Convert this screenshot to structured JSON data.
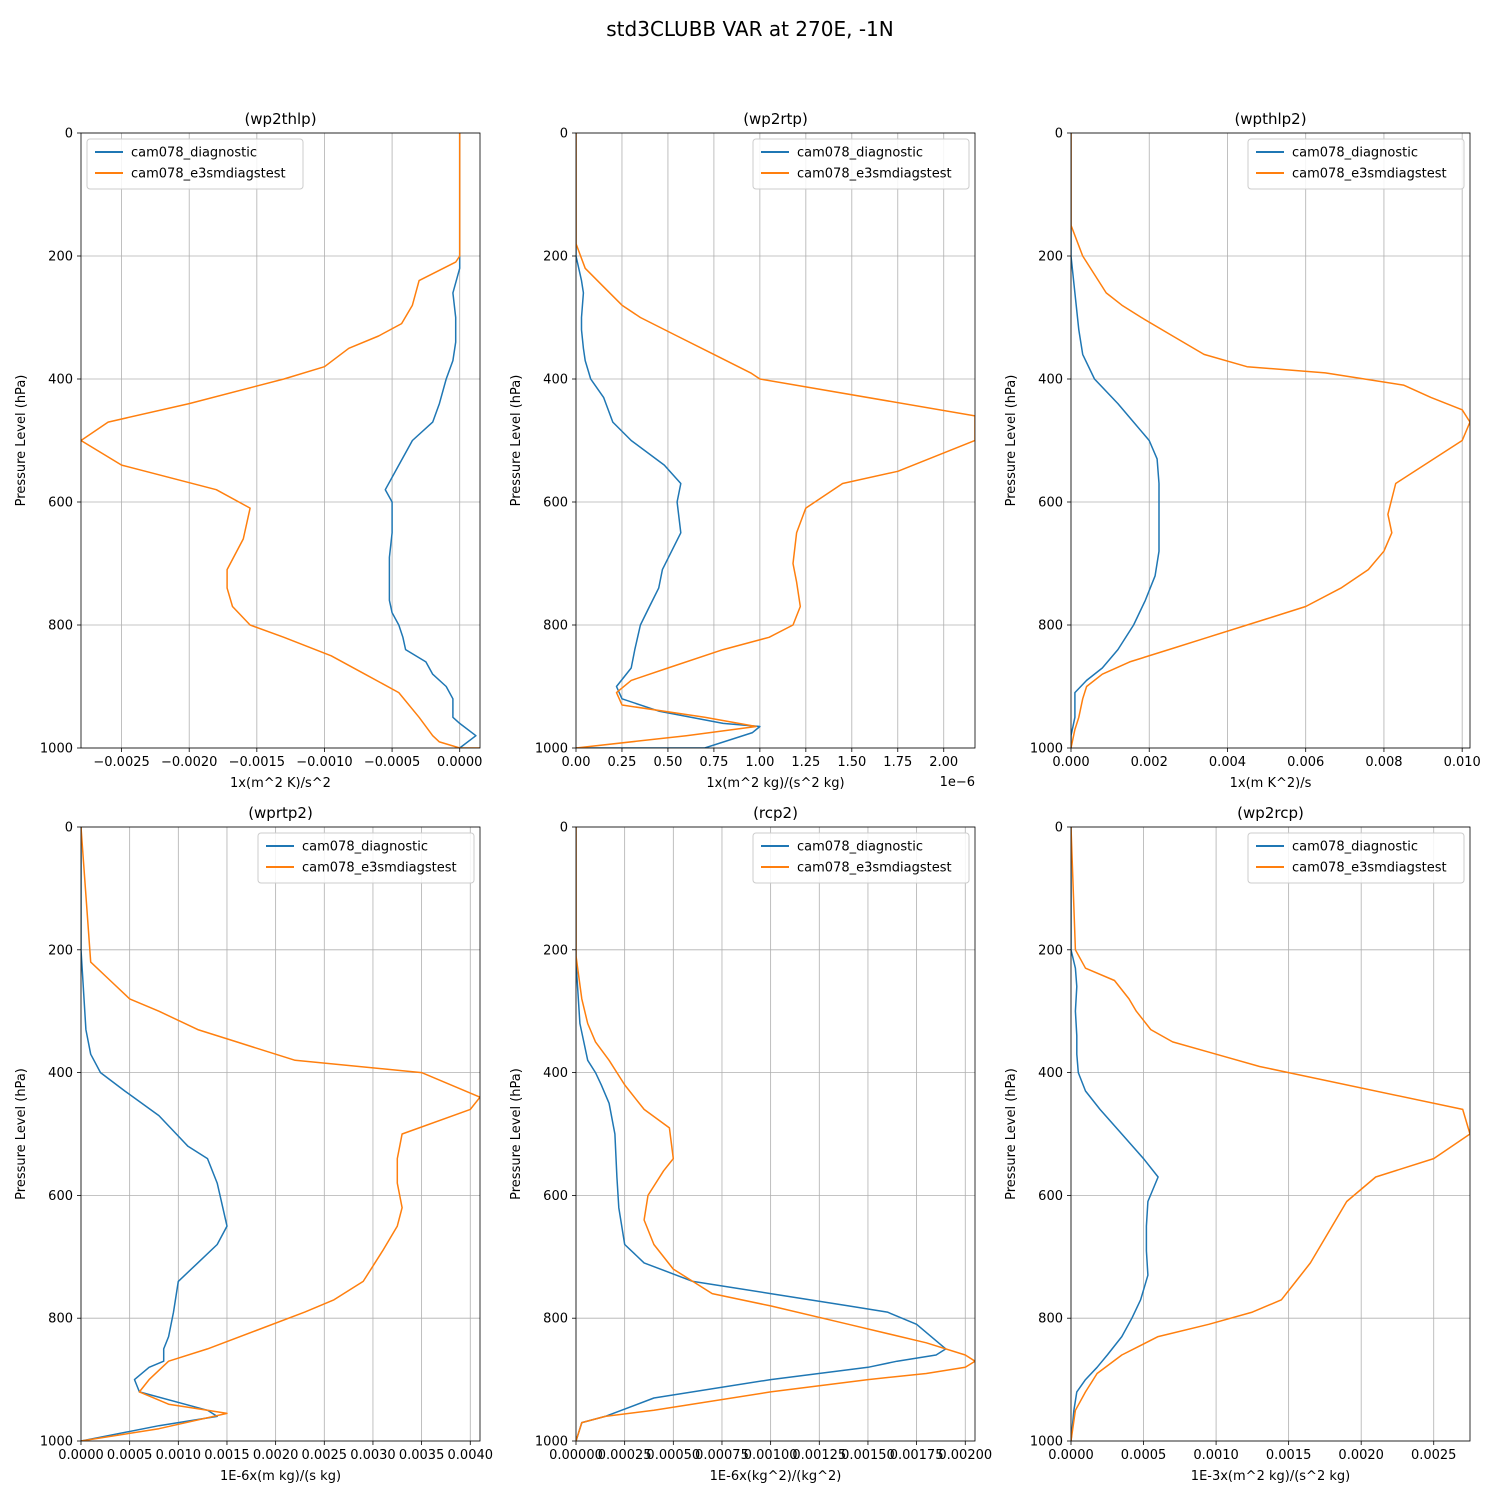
{
  "figure": {
    "title": "std3CLUBB VAR at 270E, -1N"
  },
  "legend_labels": [
    "cam078_diagnostic",
    "cam078_e3smdiagstest"
  ],
  "colors": {
    "series1": "#1f77b4",
    "series2": "#ff7f0e",
    "grid": "#b0b0b0"
  },
  "chart_data": [
    {
      "type": "line",
      "title": "(wp2thlp)",
      "xlabel": "1x(m^2 K)/s^2",
      "ylabel": "Pressure Level (hPa)",
      "xlim": [
        -0.0028,
        0.00015
      ],
      "ylim": [
        1000,
        0
      ],
      "xticks": [
        -0.0025,
        -0.002,
        -0.0015,
        -0.001,
        -0.0005,
        0.0
      ],
      "xtick_labels": [
        "−0.0025",
        "−0.0020",
        "−0.0015",
        "−0.0010",
        "−0.0005",
        "0.0000"
      ],
      "yticks": [
        0,
        200,
        400,
        600,
        800,
        1000
      ],
      "offset_text": "",
      "legend_loc": "upper left",
      "grid": true,
      "series": [
        {
          "name": "cam078_diagnostic",
          "x": [
            0,
            0,
            0,
            0,
            -5e-05,
            -3e-05,
            -3e-05,
            -5e-05,
            -0.0001,
            -0.00015,
            -0.0002,
            -0.00035,
            -0.00045,
            -0.00055,
            -0.0005,
            -0.0005,
            -0.00052,
            -0.00052,
            -0.00052,
            -0.0005,
            -0.00045,
            -0.00042,
            -0.0004,
            -0.00025,
            -0.0002,
            -0.0001,
            -5e-05,
            -5e-05,
            0.0,
            0.00012,
            0.0
          ],
          "y": [
            0,
            100,
            200,
            220,
            260,
            300,
            340,
            370,
            400,
            440,
            470,
            500,
            540,
            580,
            600,
            650,
            690,
            720,
            760,
            780,
            800,
            820,
            840,
            860,
            880,
            900,
            920,
            950,
            960,
            980,
            1000
          ]
        },
        {
          "name": "cam078_e3smdiagstest",
          "x": [
            0,
            0,
            0,
            -3e-05,
            -0.0003,
            -0.00035,
            -0.00043,
            -0.0006,
            -0.00082,
            -0.001,
            -0.0013,
            -0.002,
            -0.0026,
            -0.0028,
            -0.0025,
            -0.0018,
            -0.00155,
            -0.0016,
            -0.00172,
            -0.00172,
            -0.00168,
            -0.00155,
            -0.0013,
            -0.00095,
            -0.0007,
            -0.00045,
            -0.0003,
            -0.0002,
            -0.00015,
            0.0,
            0.00015,
            0.0
          ],
          "y": [
            0,
            100,
            200,
            210,
            240,
            280,
            310,
            330,
            350,
            380,
            400,
            440,
            470,
            500,
            540,
            580,
            610,
            660,
            710,
            740,
            770,
            800,
            820,
            850,
            880,
            910,
            950,
            980,
            990,
            1000,
            1000,
            1000
          ]
        }
      ]
    },
    {
      "type": "line",
      "title": "(wp2rtp)",
      "xlabel": "1x(m^2 kg)/(s^2 kg)",
      "ylabel": "Pressure Level (hPa)",
      "xlim": [
        0,
        2.17
      ],
      "ylim": [
        1000,
        0
      ],
      "xticks": [
        0,
        0.25,
        0.5,
        0.75,
        1.0,
        1.25,
        1.5,
        1.75,
        2.0
      ],
      "xtick_labels": [
        "0.00",
        "0.25",
        "0.50",
        "0.75",
        "1.00",
        "1.25",
        "1.50",
        "1.75",
        "2.00"
      ],
      "yticks": [
        0,
        200,
        400,
        600,
        800,
        1000
      ],
      "offset_text": "1e−6",
      "legend_loc": "upper right",
      "grid": true,
      "series": [
        {
          "name": "cam078_diagnostic",
          "x": [
            0,
            0,
            0,
            0.03,
            0.04,
            0.03,
            0.03,
            0.04,
            0.05,
            0.08,
            0.15,
            0.2,
            0.3,
            0.48,
            0.57,
            0.55,
            0.57,
            0.52,
            0.47,
            0.45,
            0.4,
            0.35,
            0.32,
            0.3,
            0.22,
            0.25,
            0.45,
            0.8,
            1.0,
            0.96,
            0.7,
            0.0
          ],
          "y": [
            0,
            100,
            200,
            240,
            260,
            300,
            320,
            350,
            370,
            400,
            430,
            470,
            500,
            540,
            570,
            600,
            650,
            680,
            710,
            740,
            770,
            800,
            840,
            870,
            900,
            920,
            940,
            960,
            965,
            975,
            1000,
            1000
          ]
        },
        {
          "name": "cam078_e3smdiagstest",
          "x": [
            0,
            0,
            0,
            0.05,
            0.15,
            0.25,
            0.35,
            0.55,
            0.75,
            0.95,
            1.0,
            2.17,
            2.17,
            1.75,
            1.45,
            1.25,
            1.2,
            1.18,
            1.2,
            1.22,
            1.18,
            1.05,
            0.8,
            0.5,
            0.3,
            0.22,
            0.25,
            0.7,
            0.98,
            0.6,
            0.0
          ],
          "y": [
            0,
            100,
            180,
            220,
            250,
            280,
            300,
            330,
            360,
            390,
            400,
            460,
            500,
            550,
            570,
            610,
            650,
            700,
            730,
            770,
            800,
            820,
            840,
            870,
            890,
            910,
            930,
            950,
            965,
            980,
            1000
          ]
        }
      ]
    },
    {
      "type": "line",
      "title": "(wpthlp2)",
      "xlabel": "1x(m K^2)/s",
      "ylabel": "Pressure Level (hPa)",
      "xlim": [
        0,
        0.0102
      ],
      "ylim": [
        1000,
        0
      ],
      "xticks": [
        0,
        0.002,
        0.004,
        0.006,
        0.008,
        0.01
      ],
      "xtick_labels": [
        "0.000",
        "0.002",
        "0.004",
        "0.006",
        "0.008",
        "0.010"
      ],
      "yticks": [
        0,
        200,
        400,
        600,
        800,
        1000
      ],
      "offset_text": "",
      "legend_loc": "upper right",
      "grid": true,
      "series": [
        {
          "name": "cam078_diagnostic",
          "x": [
            0,
            0,
            0,
            0.0001,
            0.0002,
            0.0003,
            0.0006,
            0.0012,
            0.0016,
            0.002,
            0.0022,
            0.00225,
            0.00225,
            0.00215,
            0.0019,
            0.0016,
            0.0012,
            0.0008,
            0.0004,
            0.0001,
            0.0001,
            0.0,
            0.0
          ],
          "y": [
            0,
            100,
            200,
            260,
            320,
            360,
            400,
            440,
            470,
            500,
            530,
            570,
            680,
            720,
            760,
            800,
            840,
            870,
            890,
            910,
            950,
            980,
            1000
          ]
        },
        {
          "name": "cam078_e3smdiagstest",
          "x": [
            0,
            0,
            0.0003,
            0.0006,
            0.0009,
            0.0013,
            0.0018,
            0.0026,
            0.0034,
            0.0045,
            0.0065,
            0.0085,
            0.0092,
            0.01,
            0.0102,
            0.01,
            0.0083,
            0.0081,
            0.0082,
            0.008,
            0.0076,
            0.0069,
            0.006,
            0.005,
            0.0035,
            0.0025,
            0.0015,
            0.0008,
            0.0004,
            0.0003,
            0.0002,
            0.0001,
            0.0
          ],
          "y": [
            0,
            150,
            200,
            230,
            260,
            280,
            300,
            330,
            360,
            380,
            390,
            410,
            430,
            450,
            470,
            500,
            570,
            620,
            650,
            680,
            710,
            740,
            770,
            790,
            820,
            840,
            860,
            880,
            900,
            920,
            950,
            970,
            1000
          ]
        }
      ]
    },
    {
      "type": "line",
      "title": "(wprtp2)",
      "xlabel": "1E-6x(m kg)/(s kg)",
      "ylabel": "Pressure Level (hPa)",
      "xlim": [
        0,
        0.0041
      ],
      "ylim": [
        1000,
        0
      ],
      "xticks": [
        0,
        0.0005,
        0.001,
        0.0015,
        0.002,
        0.0025,
        0.003,
        0.0035,
        0.004
      ],
      "xtick_labels": [
        "0.0000",
        "0.0005",
        "0.0010",
        "0.0015",
        "0.0020",
        "0.0025",
        "0.0030",
        "0.0035",
        "0.0040"
      ],
      "yticks": [
        0,
        200,
        400,
        600,
        800,
        1000
      ],
      "offset_text": "",
      "legend_loc": "upper right",
      "grid": true,
      "series": [
        {
          "name": "cam078_diagnostic",
          "x": [
            0,
            0,
            2e-05,
            5e-05,
            0.0001,
            0.0002,
            0.00045,
            0.0008,
            0.0011,
            0.0013,
            0.0014,
            0.0015,
            0.0014,
            0.0012,
            0.001,
            0.00095,
            0.0009,
            0.00085,
            0.00085,
            0.0007,
            0.00055,
            0.0006,
            0.0013,
            0.0014,
            0.0008,
            0.0
          ],
          "y": [
            0,
            200,
            250,
            330,
            370,
            400,
            430,
            470,
            520,
            540,
            580,
            650,
            680,
            710,
            740,
            790,
            830,
            850,
            870,
            880,
            900,
            920,
            950,
            960,
            975,
            1000
          ]
        },
        {
          "name": "cam078_e3smdiagstest",
          "x": [
            0,
            0.0001,
            0.0003,
            0.0005,
            0.0008,
            0.0012,
            0.0016,
            0.0022,
            0.0035,
            0.0041,
            0.004,
            0.0033,
            0.00325,
            0.00325,
            0.0033,
            0.00325,
            0.0031,
            0.0029,
            0.0026,
            0.0023,
            0.0018,
            0.0013,
            0.0009,
            0.0007,
            0.0006,
            0.0009,
            0.0013,
            0.0015,
            0.0008,
            0.0
          ],
          "y": [
            0,
            220,
            250,
            280,
            300,
            330,
            350,
            380,
            400,
            440,
            460,
            500,
            540,
            580,
            620,
            650,
            690,
            740,
            770,
            790,
            820,
            850,
            870,
            900,
            920,
            940,
            950,
            955,
            980,
            1000
          ]
        }
      ]
    },
    {
      "type": "line",
      "title": "(rcp2)",
      "xlabel": "1E-6x(kg^2)/(kg^2)",
      "ylabel": "Pressure Level (hPa)",
      "xlim": [
        0,
        0.00205
      ],
      "ylim": [
        1000,
        0
      ],
      "xticks": [
        0,
        0.00025,
        0.0005,
        0.00075,
        0.001,
        0.00125,
        0.0015,
        0.00175,
        0.002
      ],
      "xtick_labels": [
        "0.00000",
        "0.00025",
        "0.00050",
        "0.00075",
        "0.00100",
        "0.00125",
        "0.00150",
        "0.00175",
        "0.00200"
      ],
      "yticks": [
        0,
        200,
        400,
        600,
        800,
        1000
      ],
      "offset_text": "",
      "legend_loc": "upper right",
      "grid": true,
      "series": [
        {
          "name": "cam078_diagnostic",
          "x": [
            0,
            0,
            2e-05,
            4e-05,
            6e-05,
            0.0001,
            0.00013,
            0.00017,
            0.0002,
            0.00021,
            0.00022,
            0.00025,
            0.00035,
            0.0006,
            0.001,
            0.0014,
            0.0016,
            0.00175,
            0.0019,
            0.00185,
            0.00165,
            0.0015,
            0.001,
            0.0004,
            0.00015,
            3e-05,
            0.0
          ],
          "y": [
            0,
            220,
            320,
            350,
            380,
            400,
            420,
            450,
            500,
            570,
            620,
            680,
            710,
            740,
            760,
            780,
            790,
            810,
            850,
            860,
            870,
            880,
            900,
            930,
            960,
            970,
            1000
          ]
        },
        {
          "name": "cam078_e3smdiagstest",
          "x": [
            0,
            0,
            3e-05,
            6e-05,
            0.0001,
            0.00017,
            0.00025,
            0.00035,
            0.00048,
            0.0005,
            0.00045,
            0.00037,
            0.00035,
            0.0004,
            0.0005,
            0.0007,
            0.001,
            0.0014,
            0.0018,
            0.002,
            0.00205,
            0.002,
            0.0018,
            0.0015,
            0.001,
            0.0004,
            0.00015,
            3e-05,
            0.0
          ],
          "y": [
            0,
            210,
            280,
            320,
            350,
            380,
            420,
            460,
            490,
            540,
            560,
            600,
            640,
            680,
            720,
            760,
            780,
            810,
            840,
            860,
            870,
            880,
            890,
            900,
            920,
            950,
            960,
            970,
            1000
          ]
        }
      ]
    },
    {
      "type": "line",
      "title": "(wp2rcp)",
      "xlabel": "1E-3x(m^2 kg)/(s^2 kg)",
      "ylabel": "Pressure Level (hPa)",
      "xlim": [
        0,
        0.00275
      ],
      "ylim": [
        1000,
        0
      ],
      "xticks": [
        0,
        0.0005,
        0.001,
        0.0015,
        0.002,
        0.0025
      ],
      "xtick_labels": [
        "0.0000",
        "0.0005",
        "0.0010",
        "0.0015",
        "0.0020",
        "0.0025"
      ],
      "yticks": [
        0,
        200,
        400,
        600,
        800,
        1000
      ],
      "offset_text": "",
      "legend_loc": "upper right",
      "grid": true,
      "series": [
        {
          "name": "cam078_diagnostic",
          "x": [
            0,
            0,
            3e-05,
            4e-05,
            3e-05,
            4e-05,
            4e-05,
            5e-05,
            0.0001,
            0.0002,
            0.00035,
            0.0005,
            0.0006,
            0.00053,
            0.00052,
            0.00052,
            0.00053,
            0.00048,
            0.00042,
            0.00035,
            0.00025,
            0.00018,
            0.0001,
            4e-05,
            2e-05,
            0.0
          ],
          "y": [
            0,
            200,
            230,
            260,
            300,
            340,
            370,
            400,
            430,
            460,
            500,
            540,
            570,
            610,
            650,
            690,
            730,
            770,
            800,
            830,
            860,
            880,
            900,
            920,
            950,
            1000
          ]
        },
        {
          "name": "cam078_e3smdiagstest",
          "x": [
            0,
            3e-05,
            0.0001,
            0.0003,
            0.0004,
            0.00045,
            0.00055,
            0.0007,
            0.001,
            0.0013,
            0.0015,
            0.0027,
            0.00275,
            0.0025,
            0.0021,
            0.0019,
            0.00175,
            0.00165,
            0.00155,
            0.00145,
            0.00125,
            0.00095,
            0.0006,
            0.00035,
            0.00018,
            0.0001,
            3e-05,
            0.0
          ],
          "y": [
            0,
            200,
            230,
            250,
            280,
            300,
            330,
            350,
            370,
            390,
            400,
            460,
            500,
            540,
            570,
            610,
            670,
            710,
            740,
            770,
            790,
            810,
            830,
            860,
            890,
            920,
            950,
            1000
          ]
        }
      ]
    }
  ]
}
